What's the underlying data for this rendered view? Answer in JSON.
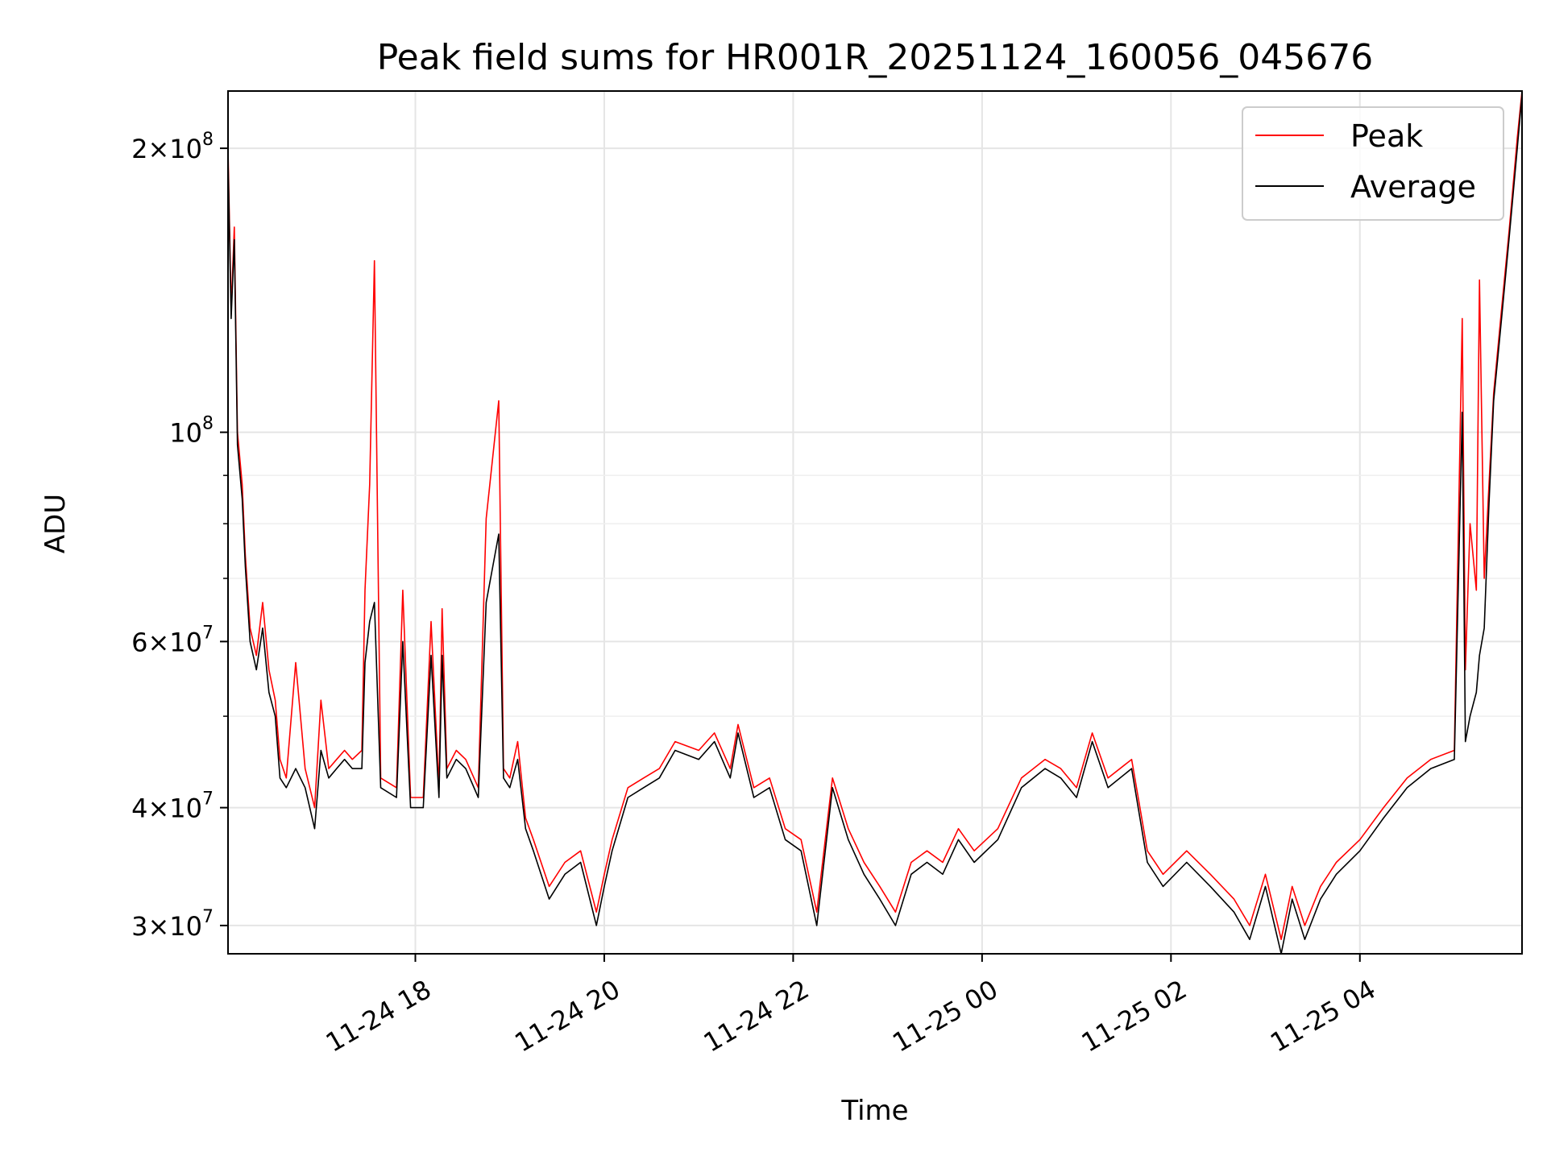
{
  "chart_data": {
    "type": "line",
    "title": "Peak field sums for HR001R_20251124_160056_045676",
    "xlabel": "Time",
    "ylabel": "ADU",
    "y_scale": "log",
    "ylim": [
      28000000,
      230000000
    ],
    "xlim": [
      "2025-11-24T16:01",
      "2025-11-25T05:43"
    ],
    "grid": true,
    "legend_position": "top-right",
    "x_ticks": [
      {
        "value": "2025-11-24T18:00",
        "label": "11-24 18"
      },
      {
        "value": "2025-11-24T20:00",
        "label": "11-24 20"
      },
      {
        "value": "2025-11-24T22:00",
        "label": "11-24 22"
      },
      {
        "value": "2025-11-25T00:00",
        "label": "11-25 00"
      },
      {
        "value": "2025-11-25T02:00",
        "label": "11-25 02"
      },
      {
        "value": "2025-11-25T04:00",
        "label": "11-25 04"
      }
    ],
    "y_major_ticks": [
      {
        "value": 100000000,
        "base": "10",
        "exp": "8",
        "mantissa": ""
      },
      {
        "value": 200000000,
        "base": "10",
        "exp": "8",
        "mantissa": "2"
      },
      {
        "value": 30000000,
        "base": "10",
        "exp": "7",
        "mantissa": "3"
      },
      {
        "value": 40000000,
        "base": "10",
        "exp": "7",
        "mantissa": "4"
      },
      {
        "value": 60000000,
        "base": "10",
        "exp": "7",
        "mantissa": "6"
      }
    ],
    "y_minor_ticks": [
      50000000,
      70000000,
      80000000,
      90000000
    ],
    "series": [
      {
        "name": "Peak",
        "color": "#ff0000",
        "x": [
          "2025-11-24T16:01",
          "2025-11-24T16:03",
          "2025-11-24T16:05",
          "2025-11-24T16:07",
          "2025-11-24T16:10",
          "2025-11-24T16:12",
          "2025-11-24T16:15",
          "2025-11-24T16:19",
          "2025-11-24T16:23",
          "2025-11-24T16:27",
          "2025-11-24T16:31",
          "2025-11-24T16:34",
          "2025-11-24T16:38",
          "2025-11-24T16:44",
          "2025-11-24T16:50",
          "2025-11-24T16:56",
          "2025-11-24T17:00",
          "2025-11-24T17:05",
          "2025-11-24T17:10",
          "2025-11-24T17:15",
          "2025-11-24T17:20",
          "2025-11-24T17:26",
          "2025-11-24T17:28",
          "2025-11-24T17:31",
          "2025-11-24T17:34",
          "2025-11-24T17:38",
          "2025-11-24T17:48",
          "2025-11-24T17:52",
          "2025-11-24T17:57",
          "2025-11-24T18:05",
          "2025-11-24T18:10",
          "2025-11-24T18:15",
          "2025-11-24T18:17",
          "2025-11-24T18:20",
          "2025-11-24T18:26",
          "2025-11-24T18:32",
          "2025-11-24T18:40",
          "2025-11-24T18:45",
          "2025-11-24T18:53",
          "2025-11-24T18:56",
          "2025-11-24T19:00",
          "2025-11-24T19:05",
          "2025-11-24T19:10",
          "2025-11-24T19:15",
          "2025-11-24T19:25",
          "2025-11-24T19:35",
          "2025-11-24T19:45",
          "2025-11-24T19:55",
          "2025-11-24T20:00",
          "2025-11-24T20:05",
          "2025-11-24T20:15",
          "2025-11-24T20:25",
          "2025-11-24T20:35",
          "2025-11-24T20:45",
          "2025-11-24T21:00",
          "2025-11-24T21:10",
          "2025-11-24T21:20",
          "2025-11-24T21:25",
          "2025-11-24T21:35",
          "2025-11-24T21:45",
          "2025-11-24T21:55",
          "2025-11-24T22:05",
          "2025-11-24T22:15",
          "2025-11-24T22:25",
          "2025-11-24T22:35",
          "2025-11-24T22:45",
          "2025-11-24T22:55",
          "2025-11-24T23:05",
          "2025-11-24T23:15",
          "2025-11-24T23:25",
          "2025-11-24T23:35",
          "2025-11-24T23:45",
          "2025-11-24T23:55",
          "2025-11-25T00:10",
          "2025-11-25T00:25",
          "2025-11-25T00:40",
          "2025-11-25T00:50",
          "2025-11-25T01:00",
          "2025-11-25T01:10",
          "2025-11-25T01:20",
          "2025-11-25T01:35",
          "2025-11-25T01:45",
          "2025-11-25T01:55",
          "2025-11-25T02:10",
          "2025-11-25T02:25",
          "2025-11-25T02:40",
          "2025-11-25T02:50",
          "2025-11-25T03:00",
          "2025-11-25T03:10",
          "2025-11-25T03:17",
          "2025-11-25T03:25",
          "2025-11-25T03:35",
          "2025-11-25T03:45",
          "2025-11-25T04:00",
          "2025-11-25T04:15",
          "2025-11-25T04:30",
          "2025-11-25T04:45",
          "2025-11-25T05:00",
          "2025-11-25T05:05",
          "2025-11-25T05:07",
          "2025-11-25T05:10",
          "2025-11-25T05:14",
          "2025-11-25T05:16",
          "2025-11-25T05:19",
          "2025-11-25T05:22",
          "2025-11-25T05:25",
          "2025-11-25T05:30",
          "2025-11-25T05:35",
          "2025-11-25T05:40",
          "2025-11-25T05:43"
        ],
        "values": [
          200000000,
          135000000,
          165000000,
          100000000,
          88000000,
          74000000,
          62000000,
          58000000,
          66000000,
          56000000,
          52000000,
          45000000,
          43000000,
          57000000,
          44000000,
          40000000,
          52000000,
          44000000,
          45000000,
          46000000,
          45000000,
          46000000,
          68000000,
          88000000,
          152000000,
          43000000,
          42000000,
          68000000,
          41000000,
          41000000,
          63000000,
          42000000,
          65000000,
          44000000,
          46000000,
          45000000,
          42000000,
          81000000,
          108000000,
          44000000,
          43000000,
          47000000,
          39000000,
          37000000,
          33000000,
          35000000,
          36000000,
          31000000,
          34000000,
          37000000,
          42000000,
          43000000,
          44000000,
          47000000,
          46000000,
          48000000,
          44000000,
          49000000,
          42000000,
          43000000,
          38000000,
          37000000,
          31000000,
          43000000,
          38000000,
          35000000,
          33000000,
          31000000,
          35000000,
          36000000,
          35000000,
          38000000,
          36000000,
          38000000,
          43000000,
          45000000,
          44000000,
          42000000,
          48000000,
          43000000,
          45000000,
          36000000,
          34000000,
          36000000,
          34000000,
          32000000,
          30000000,
          34000000,
          29000000,
          33000000,
          30000000,
          33000000,
          35000000,
          37000000,
          40000000,
          43000000,
          45000000,
          46000000,
          132000000,
          56000000,
          80000000,
          68000000,
          145000000,
          70000000,
          88000000,
          110000000,
          135000000,
          165000000,
          205000000,
          230000000
        ]
      },
      {
        "name": "Average",
        "color": "#000000",
        "x": [
          "2025-11-24T16:01",
          "2025-11-24T16:03",
          "2025-11-24T16:05",
          "2025-11-24T16:07",
          "2025-11-24T16:10",
          "2025-11-24T16:12",
          "2025-11-24T16:15",
          "2025-11-24T16:19",
          "2025-11-24T16:23",
          "2025-11-24T16:27",
          "2025-11-24T16:31",
          "2025-11-24T16:34",
          "2025-11-24T16:38",
          "2025-11-24T16:44",
          "2025-11-24T16:50",
          "2025-11-24T16:56",
          "2025-11-24T17:00",
          "2025-11-24T17:05",
          "2025-11-24T17:10",
          "2025-11-24T17:15",
          "2025-11-24T17:20",
          "2025-11-24T17:26",
          "2025-11-24T17:28",
          "2025-11-24T17:31",
          "2025-11-24T17:34",
          "2025-11-24T17:38",
          "2025-11-24T17:48",
          "2025-11-24T17:52",
          "2025-11-24T17:57",
          "2025-11-24T18:05",
          "2025-11-24T18:10",
          "2025-11-24T18:15",
          "2025-11-24T18:17",
          "2025-11-24T18:20",
          "2025-11-24T18:26",
          "2025-11-24T18:32",
          "2025-11-24T18:40",
          "2025-11-24T18:45",
          "2025-11-24T18:53",
          "2025-11-24T18:56",
          "2025-11-24T19:00",
          "2025-11-24T19:05",
          "2025-11-24T19:10",
          "2025-11-24T19:15",
          "2025-11-24T19:25",
          "2025-11-24T19:35",
          "2025-11-24T19:45",
          "2025-11-24T19:55",
          "2025-11-24T20:00",
          "2025-11-24T20:05",
          "2025-11-24T20:15",
          "2025-11-24T20:25",
          "2025-11-24T20:35",
          "2025-11-24T20:45",
          "2025-11-24T21:00",
          "2025-11-24T21:10",
          "2025-11-24T21:20",
          "2025-11-24T21:25",
          "2025-11-24T21:35",
          "2025-11-24T21:45",
          "2025-11-24T21:55",
          "2025-11-24T22:05",
          "2025-11-24T22:15",
          "2025-11-24T22:25",
          "2025-11-24T22:35",
          "2025-11-24T22:45",
          "2025-11-24T22:55",
          "2025-11-24T23:05",
          "2025-11-24T23:15",
          "2025-11-24T23:25",
          "2025-11-24T23:35",
          "2025-11-24T23:45",
          "2025-11-24T23:55",
          "2025-11-25T00:10",
          "2025-11-25T00:25",
          "2025-11-25T00:40",
          "2025-11-25T00:50",
          "2025-11-25T01:00",
          "2025-11-25T01:10",
          "2025-11-25T01:20",
          "2025-11-25T01:35",
          "2025-11-25T01:45",
          "2025-11-25T01:55",
          "2025-11-25T02:10",
          "2025-11-25T02:25",
          "2025-11-25T02:40",
          "2025-11-25T02:50",
          "2025-11-25T03:00",
          "2025-11-25T03:10",
          "2025-11-25T03:17",
          "2025-11-25T03:25",
          "2025-11-25T03:35",
          "2025-11-25T03:45",
          "2025-11-25T04:00",
          "2025-11-25T04:15",
          "2025-11-25T04:30",
          "2025-11-25T04:45",
          "2025-11-25T05:00",
          "2025-11-25T05:05",
          "2025-11-25T05:07",
          "2025-11-25T05:10",
          "2025-11-25T05:14",
          "2025-11-25T05:16",
          "2025-11-25T05:19",
          "2025-11-25T05:22",
          "2025-11-25T05:25",
          "2025-11-25T05:30",
          "2025-11-25T05:35",
          "2025-11-25T05:40",
          "2025-11-25T05:43"
        ],
        "values": [
          195000000,
          132000000,
          160000000,
          97000000,
          85000000,
          72000000,
          60000000,
          56000000,
          62000000,
          53000000,
          50000000,
          43000000,
          42000000,
          44000000,
          42000000,
          38000000,
          46000000,
          43000000,
          44000000,
          45000000,
          44000000,
          44000000,
          57000000,
          63000000,
          66000000,
          42000000,
          41000000,
          60000000,
          40000000,
          40000000,
          58000000,
          41000000,
          58000000,
          43000000,
          45000000,
          44000000,
          41000000,
          66000000,
          78000000,
          43000000,
          42000000,
          45000000,
          38000000,
          36000000,
          32000000,
          34000000,
          35000000,
          30000000,
          33000000,
          36000000,
          41000000,
          42000000,
          43000000,
          46000000,
          45000000,
          47000000,
          43000000,
          48000000,
          41000000,
          42000000,
          37000000,
          36000000,
          30000000,
          42000000,
          37000000,
          34000000,
          32000000,
          30000000,
          34000000,
          35000000,
          34000000,
          37000000,
          35000000,
          37000000,
          42000000,
          44000000,
          43000000,
          41000000,
          47000000,
          42000000,
          44000000,
          35000000,
          33000000,
          35000000,
          33000000,
          31000000,
          29000000,
          33000000,
          28000000,
          32000000,
          29000000,
          32000000,
          34000000,
          36000000,
          39000000,
          42000000,
          44000000,
          45000000,
          105000000,
          47000000,
          50000000,
          53000000,
          58000000,
          62000000,
          84000000,
          108000000,
          132000000,
          162000000,
          200000000,
          228000000
        ]
      }
    ]
  }
}
